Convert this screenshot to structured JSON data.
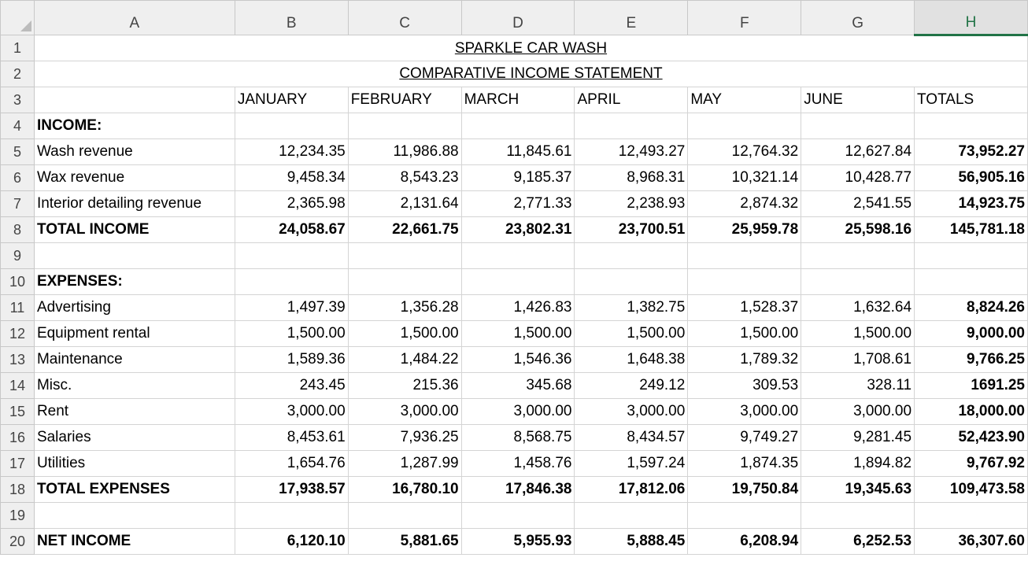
{
  "columns": [
    "A",
    "B",
    "C",
    "D",
    "E",
    "F",
    "G",
    "H"
  ],
  "active_column": "H",
  "title": "SPARKLE CAR WASH",
  "subtitle": "COMPARATIVE INCOME STATEMENT",
  "month_headers": [
    "JANUARY",
    "FEBRUARY",
    "MARCH",
    "APRIL",
    "MAY",
    "JUNE",
    "TOTALS"
  ],
  "rows": [
    {
      "n": "1",
      "type": "title",
      "key": "title"
    },
    {
      "n": "2",
      "type": "title",
      "key": "subtitle"
    },
    {
      "n": "3",
      "type": "headers"
    },
    {
      "n": "4",
      "type": "section",
      "label": "INCOME:"
    },
    {
      "n": "5",
      "type": "data",
      "label": "Wash revenue",
      "values": [
        "12,234.35",
        "11,986.88",
        "11,845.61",
        "12,493.27",
        "12,764.32",
        "12,627.84",
        "73,952.27"
      ],
      "bold": false
    },
    {
      "n": "6",
      "type": "data",
      "label": "Wax revenue",
      "values": [
        "9,458.34",
        "8,543.23",
        "9,185.37",
        "8,968.31",
        "10,321.14",
        "10,428.77",
        "56,905.16"
      ],
      "bold": false
    },
    {
      "n": "7",
      "type": "data",
      "label": "Interior detailing revenue",
      "values": [
        "2,365.98",
        "2,131.64",
        "2,771.33",
        "2,238.93",
        "2,874.32",
        "2,541.55",
        "14,923.75"
      ],
      "bold": false
    },
    {
      "n": "8",
      "type": "data",
      "label": "TOTAL INCOME",
      "values": [
        "24,058.67",
        "22,661.75",
        "23,802.31",
        "23,700.51",
        "25,959.78",
        "25,598.16",
        "145,781.18"
      ],
      "bold": true
    },
    {
      "n": "9",
      "type": "empty"
    },
    {
      "n": "10",
      "type": "section",
      "label": "EXPENSES:"
    },
    {
      "n": "11",
      "type": "data",
      "label": "Advertising",
      "values": [
        "1,497.39",
        "1,356.28",
        "1,426.83",
        "1,382.75",
        "1,528.37",
        "1,632.64",
        "8,824.26"
      ],
      "bold": false
    },
    {
      "n": "12",
      "type": "data",
      "label": "Equipment rental",
      "values": [
        "1,500.00",
        "1,500.00",
        "1,500.00",
        "1,500.00",
        "1,500.00",
        "1,500.00",
        "9,000.00"
      ],
      "bold": false
    },
    {
      "n": "13",
      "type": "data",
      "label": "Maintenance",
      "values": [
        "1,589.36",
        "1,484.22",
        "1,546.36",
        "1,648.38",
        "1,789.32",
        "1,708.61",
        "9,766.25"
      ],
      "bold": false
    },
    {
      "n": "14",
      "type": "data",
      "label": "Misc.",
      "values": [
        "243.45",
        "215.36",
        "345.68",
        "249.12",
        "309.53",
        "328.11",
        "1691.25"
      ],
      "bold": false
    },
    {
      "n": "15",
      "type": "data",
      "label": "Rent",
      "values": [
        "3,000.00",
        "3,000.00",
        "3,000.00",
        "3,000.00",
        "3,000.00",
        "3,000.00",
        "18,000.00"
      ],
      "bold": false
    },
    {
      "n": "16",
      "type": "data",
      "label": "Salaries",
      "values": [
        "8,453.61",
        "7,936.25",
        "8,568.75",
        "8,434.57",
        "9,749.27",
        "9,281.45",
        "52,423.90"
      ],
      "bold": false
    },
    {
      "n": "17",
      "type": "data",
      "label": "Utilities",
      "values": [
        "1,654.76",
        "1,287.99",
        "1,458.76",
        "1,597.24",
        "1,874.35",
        "1,894.82",
        "9,767.92"
      ],
      "bold": false
    },
    {
      "n": "18",
      "type": "data",
      "label": "TOTAL EXPENSES",
      "values": [
        "17,938.57",
        "16,780.10",
        "17,846.38",
        "17,812.06",
        "19,750.84",
        "19,345.63",
        "109,473.58"
      ],
      "bold": true
    },
    {
      "n": "19",
      "type": "empty"
    },
    {
      "n": "20",
      "type": "data",
      "label": "NET INCOME",
      "values": [
        "6,120.10",
        "5,881.65",
        "5,955.93",
        "5,888.45",
        "6,208.94",
        "6,252.53",
        "36,307.60"
      ],
      "bold": true
    }
  ]
}
